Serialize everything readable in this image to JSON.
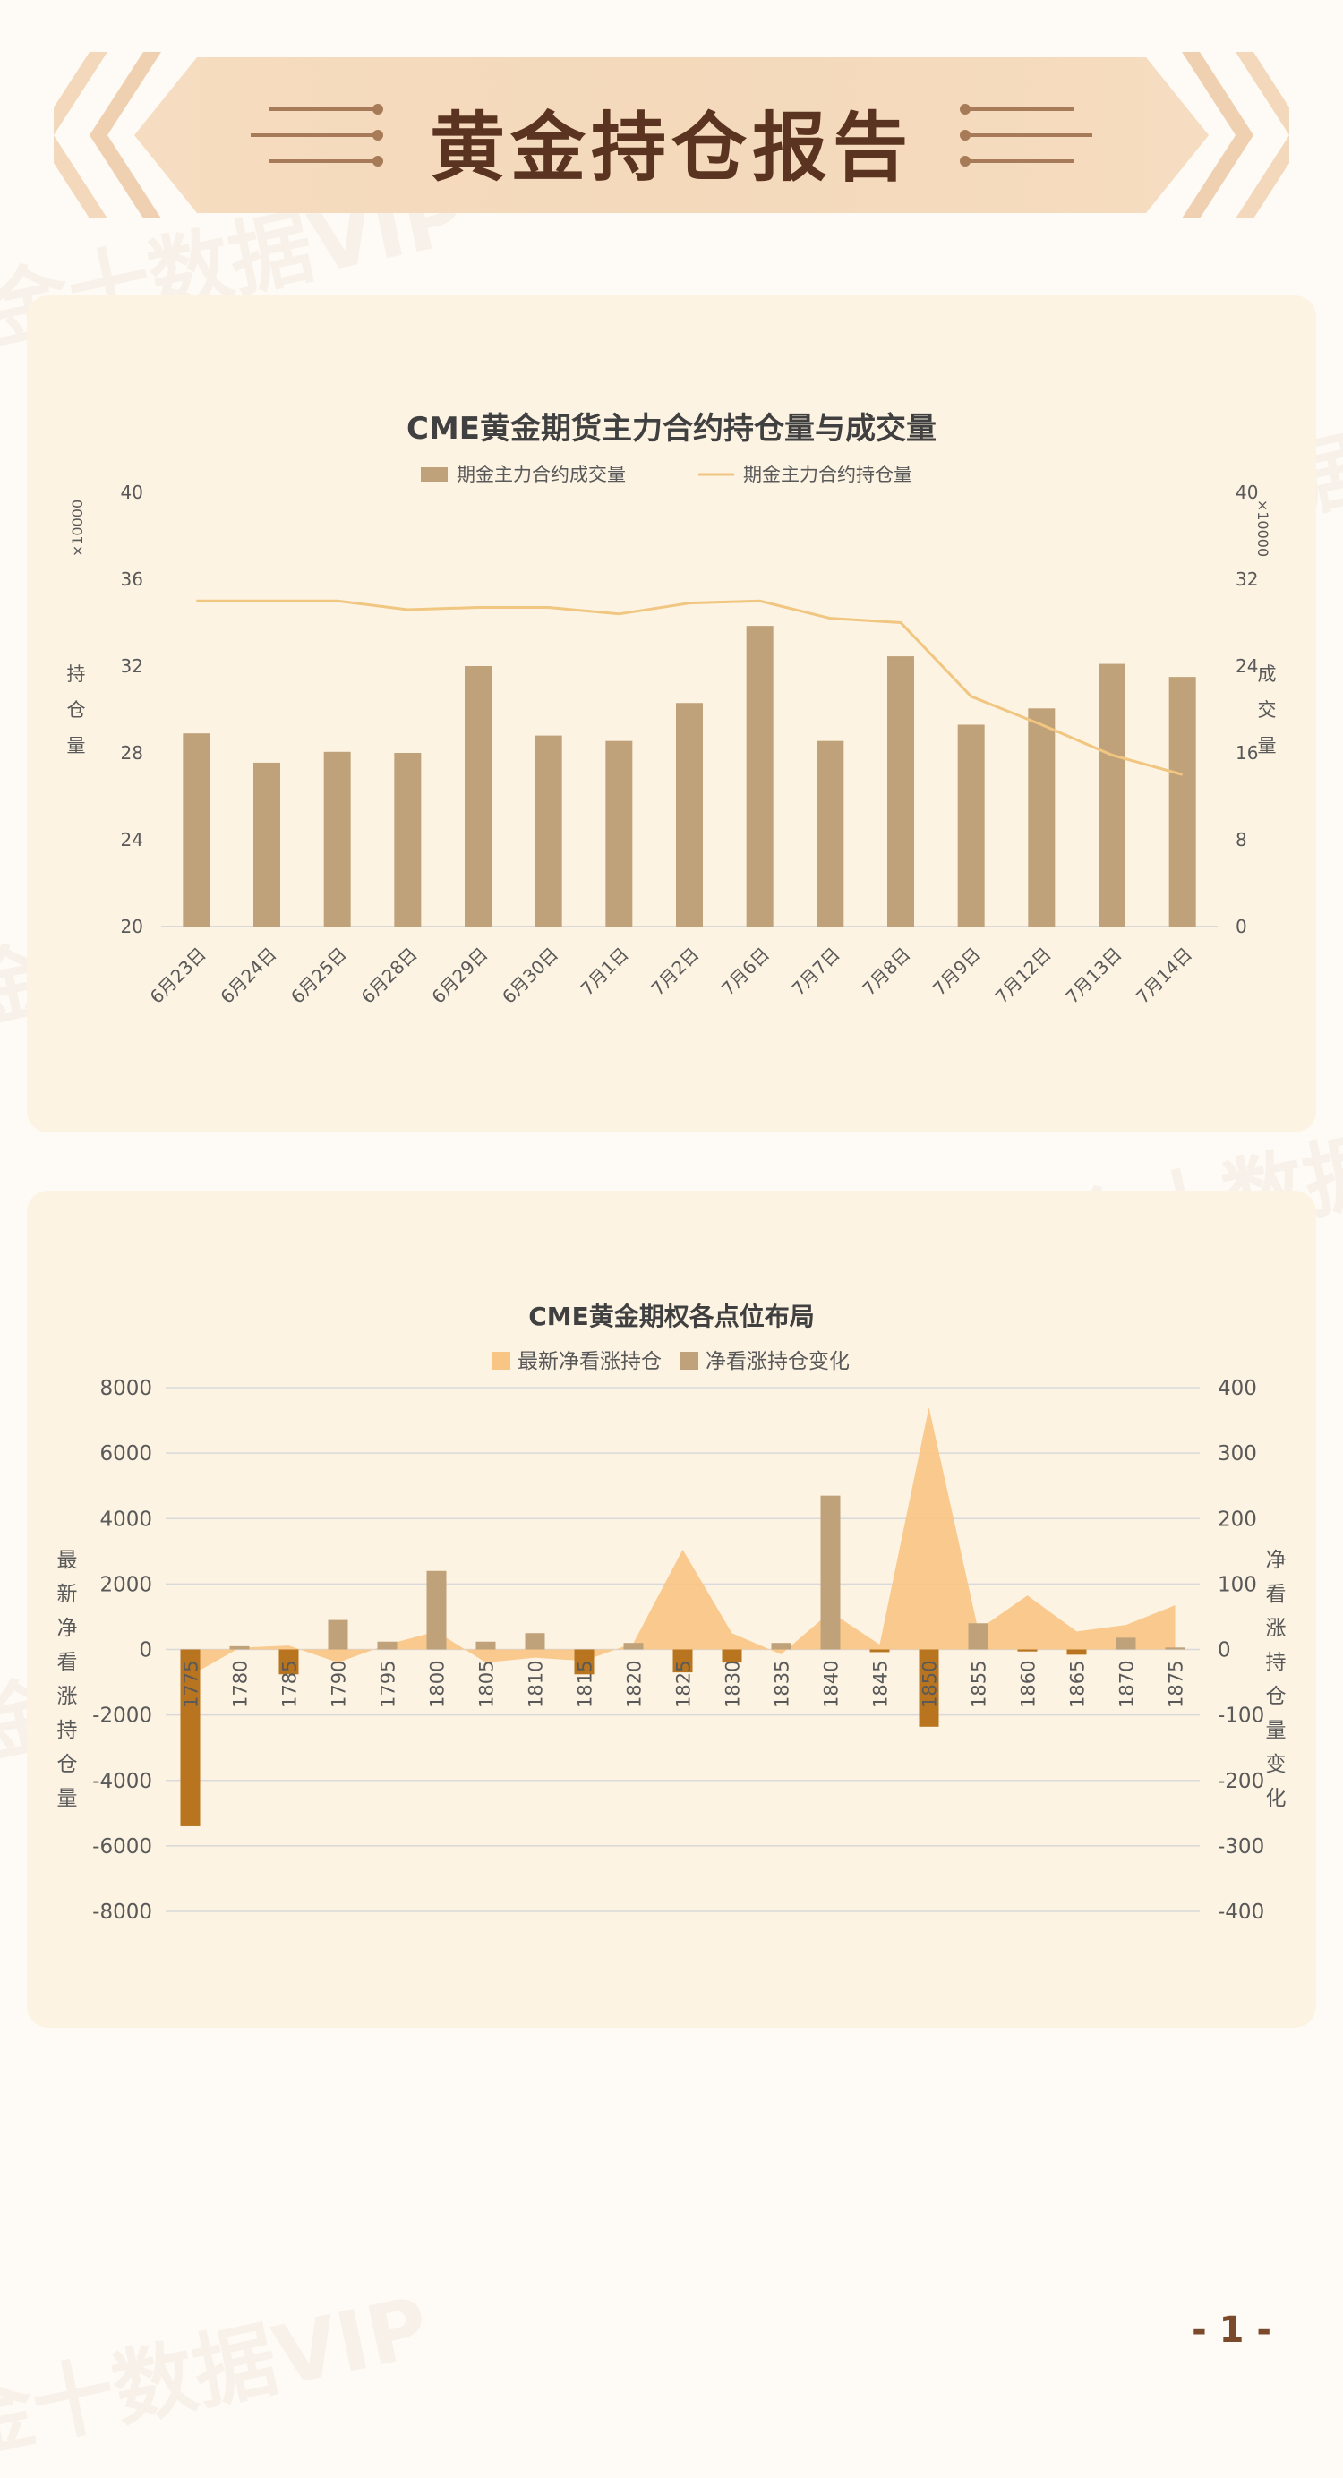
{
  "header": {
    "title": "黄金持仓报告"
  },
  "page": {
    "number": "- 1 -"
  },
  "watermark": "金十数据VIP",
  "colors": {
    "bar1": "#c0a27a",
    "line1": "#f0c680",
    "area2": "#f9c585",
    "bar2_pos": "#c0a27a",
    "bar2_neg": "#b8741e",
    "title": "#404040",
    "axis": "#595959",
    "grid": "#d9d9d9"
  },
  "chart_data": [
    {
      "type": "bar",
      "title": "CME黄金期货主力合约持仓量与成交量",
      "categories": [
        "6月23日",
        "6月24日",
        "6月25日",
        "6月28日",
        "6月29日",
        "6月30日",
        "7月1日",
        "7月2日",
        "7月6日",
        "7月7日",
        "7月8日",
        "7月9日",
        "7月12日",
        "7月13日",
        "7月14日"
      ],
      "series": [
        {
          "name": "期金主力合约成交量",
          "type": "bar",
          "axis": "right",
          "values": [
            17.8,
            15.1,
            16.1,
            16.0,
            24.0,
            17.6,
            17.1,
            20.6,
            27.7,
            17.1,
            24.9,
            18.6,
            20.1,
            24.2,
            23.0
          ]
        },
        {
          "name": "期金主力合约持仓量",
          "type": "line",
          "axis": "left",
          "values": [
            35.0,
            35.0,
            35.0,
            34.6,
            34.7,
            34.7,
            34.4,
            34.9,
            35.0,
            34.2,
            34.0,
            30.6,
            29.3,
            27.9,
            27.0
          ]
        }
      ],
      "y_left": {
        "label": "持仓量",
        "unit": "×10000",
        "ticks": [
          20,
          24,
          28,
          32,
          36,
          40
        ],
        "ylim": [
          20,
          40
        ]
      },
      "y_right": {
        "label": "成交量",
        "unit": "×10000",
        "ticks": [
          0,
          8,
          16,
          24,
          32,
          40
        ],
        "ylim": [
          0,
          40
        ]
      },
      "legend": "top",
      "grid": false
    },
    {
      "type": "bar",
      "title": "CME黄金期权各点位布局",
      "categories": [
        "1775",
        "1780",
        "1785",
        "1790",
        "1795",
        "1800",
        "1805",
        "1810",
        "1815",
        "1820",
        "1825",
        "1830",
        "1835",
        "1840",
        "1845",
        "1850",
        "1855",
        "1860",
        "1865",
        "1870",
        "1875"
      ],
      "series": [
        {
          "name": "最新净看涨持仓",
          "type": "area",
          "axis": "left",
          "values": [
            -800,
            50,
            120,
            -400,
            150,
            550,
            -400,
            -250,
            -350,
            200,
            3050,
            500,
            -150,
            1150,
            150,
            7400,
            600,
            1650,
            550,
            750,
            1350
          ]
        },
        {
          "name": "净看涨持仓变化",
          "type": "bar",
          "axis": "right",
          "values": [
            -270,
            5,
            -38,
            45,
            12,
            120,
            12,
            25,
            -38,
            10,
            -35,
            -20,
            10,
            235,
            -4,
            -118,
            40,
            -3,
            -8,
            18,
            3
          ]
        }
      ],
      "y_left": {
        "label": "最新净看涨持仓量",
        "ticks": [
          -8000,
          -6000,
          -4000,
          -2000,
          0,
          2000,
          4000,
          6000,
          8000
        ],
        "ylim": [
          -8000,
          8000
        ]
      },
      "y_right": {
        "label": "净看涨持仓量变化",
        "ticks": [
          -400,
          -300,
          -200,
          -100,
          0,
          100,
          200,
          300,
          400
        ],
        "ylim": [
          -400,
          400
        ]
      },
      "legend": "top",
      "grid": true
    }
  ]
}
